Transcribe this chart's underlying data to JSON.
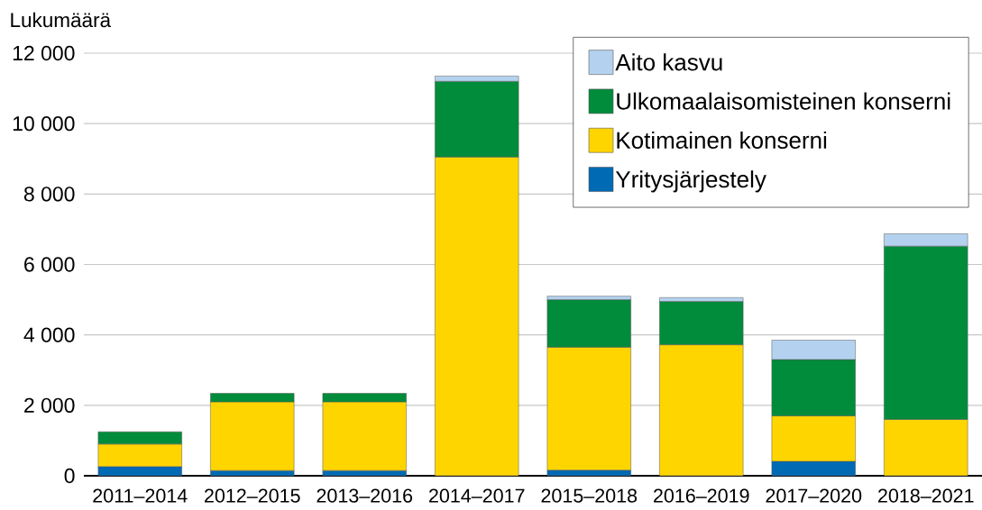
{
  "chart_data": {
    "type": "bar",
    "stacked": true,
    "ylabel": "Lukumäärä",
    "categories": [
      "2011–2014",
      "2012–2015",
      "2013–2016",
      "2014–2017",
      "2015–2018",
      "2016–2019",
      "2017–2020",
      "2018–2021"
    ],
    "series": [
      {
        "name": "Yritysjärjestely",
        "color": "#006ab4",
        "values": [
          260,
          150,
          150,
          null,
          160,
          null,
          410,
          null
        ]
      },
      {
        "name": "Kotimainen konserni",
        "color": "#ffd500",
        "values": [
          640,
          1950,
          1950,
          9050,
          3490,
          3720,
          1290,
          1600
        ]
      },
      {
        "name": "Ulkomaalaisomisteinen konserni",
        "color": "#008c3a",
        "values": [
          350,
          240,
          240,
          2150,
          1350,
          1230,
          1600,
          4920
        ]
      },
      {
        "name": "Aito kasvu",
        "color": "#b4d2ef",
        "values": [
          null,
          null,
          null,
          150,
          100,
          110,
          550,
          350
        ]
      }
    ],
    "ylim": [
      0,
      12000
    ],
    "yticks": [
      0,
      {
        "value": 2000,
        "label": "2 000"
      },
      {
        "value": 4000,
        "label": "4 000"
      },
      {
        "value": 6000,
        "label": "6 000"
      },
      {
        "value": 8000,
        "label": "8 000"
      },
      {
        "value": 10000,
        "label": "10 000"
      },
      {
        "value": 12000,
        "label": "12 000"
      }
    ],
    "grid": "y",
    "legend": "top right"
  }
}
